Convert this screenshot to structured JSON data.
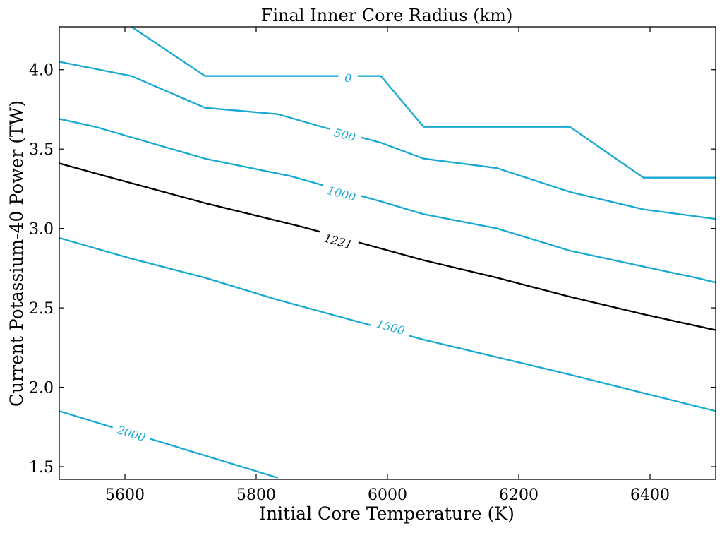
{
  "chart_data": {
    "type": "contour",
    "title": "Final Inner Core Radius (km)",
    "xlabel": "Initial Core Temperature (K)",
    "ylabel": "Current Potassium-40 Power (TW)",
    "xlim": [
      5500,
      6500
    ],
    "ylim": [
      1.42,
      4.27
    ],
    "xticks": [
      5600,
      5800,
      6000,
      6200,
      6400
    ],
    "yticks": [
      1.5,
      2.0,
      2.5,
      3.0,
      3.5,
      4.0
    ],
    "xtick_labels": [
      "5600",
      "5800",
      "6000",
      "6200",
      "6400"
    ],
    "ytick_labels": [
      "1.5",
      "2.0",
      "2.5",
      "3.0",
      "3.5",
      "4.0"
    ],
    "grid": false,
    "series": [
      {
        "name": "0",
        "color": "#17a9d1",
        "label_at": [
          5940,
          3.95
        ],
        "points": [
          [
            5610,
            4.27
          ],
          [
            5722,
            3.96
          ],
          [
            5990,
            3.96
          ],
          [
            6055,
            3.64
          ],
          [
            6278,
            3.64
          ],
          [
            6390,
            3.32
          ],
          [
            6500,
            3.32
          ]
        ]
      },
      {
        "name": "500",
        "color": "#17a9d1",
        "label_at": [
          5935,
          3.59
        ],
        "points": [
          [
            5500,
            4.05
          ],
          [
            5610,
            3.96
          ],
          [
            5722,
            3.76
          ],
          [
            5833,
            3.72
          ],
          [
            5900,
            3.64
          ],
          [
            5990,
            3.54
          ],
          [
            6055,
            3.44
          ],
          [
            6167,
            3.38
          ],
          [
            6278,
            3.23
          ],
          [
            6390,
            3.12
          ],
          [
            6500,
            3.06
          ]
        ]
      },
      {
        "name": "1000",
        "color": "#17a9d1",
        "label_at": [
          5930,
          3.22
        ],
        "points": [
          [
            5500,
            3.69
          ],
          [
            5555,
            3.64
          ],
          [
            5722,
            3.44
          ],
          [
            5852,
            3.33
          ],
          [
            5990,
            3.17
          ],
          [
            6055,
            3.09
          ],
          [
            6167,
            3.0
          ],
          [
            6278,
            2.86
          ],
          [
            6390,
            2.76
          ],
          [
            6470,
            2.69
          ],
          [
            6500,
            2.66
          ]
        ]
      },
      {
        "name": "1221",
        "color": "#000000",
        "label_at": [
          5925,
          2.92
        ],
        "points": [
          [
            5500,
            3.41
          ],
          [
            5570,
            3.33
          ],
          [
            5722,
            3.16
          ],
          [
            5870,
            3.01
          ],
          [
            6055,
            2.8
          ],
          [
            6167,
            2.69
          ],
          [
            6278,
            2.57
          ],
          [
            6390,
            2.46
          ],
          [
            6500,
            2.36
          ]
        ]
      },
      {
        "name": "1500",
        "color": "#17a9d1",
        "label_at": [
          6005,
          2.38
        ],
        "points": [
          [
            5500,
            2.94
          ],
          [
            5610,
            2.81
          ],
          [
            5722,
            2.69
          ],
          [
            5833,
            2.55
          ],
          [
            6055,
            2.3
          ],
          [
            6278,
            2.08
          ],
          [
            6500,
            1.85
          ]
        ]
      },
      {
        "name": "2000",
        "color": "#17a9d1",
        "label_at": [
          5610,
          1.71
        ],
        "points": [
          [
            5500,
            1.85
          ],
          [
            5833,
            1.43
          ]
        ]
      }
    ]
  }
}
